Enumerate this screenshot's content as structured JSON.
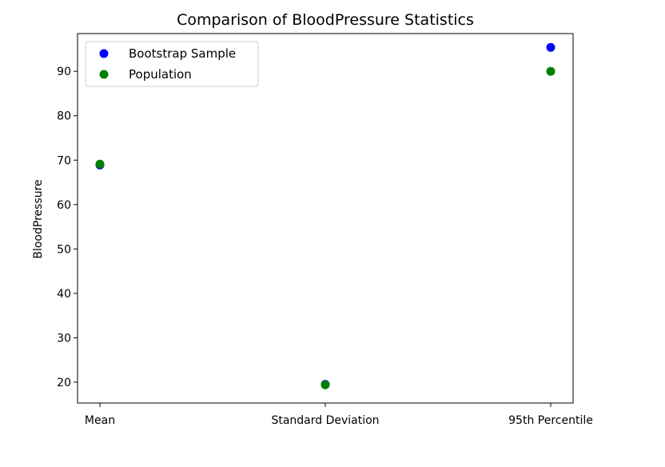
{
  "chart_data": {
    "type": "scatter",
    "title": "Comparison of BloodPressure Statistics",
    "xlabel": "",
    "ylabel": "BloodPressure",
    "categories": [
      "Mean",
      "Standard Deviation",
      "95th Percentile"
    ],
    "ylim": [
      15.3,
      98.5
    ],
    "yticks": [
      20,
      30,
      40,
      50,
      60,
      70,
      80,
      90
    ],
    "grid": false,
    "legend_position": "top-left",
    "series": [
      {
        "name": "Bootstrap Sample",
        "color": "#0000ff",
        "values": [
          68.9,
          19.5,
          95.4
        ]
      },
      {
        "name": "Population",
        "color": "#008000",
        "values": [
          69.1,
          19.4,
          90.0
        ]
      }
    ]
  }
}
